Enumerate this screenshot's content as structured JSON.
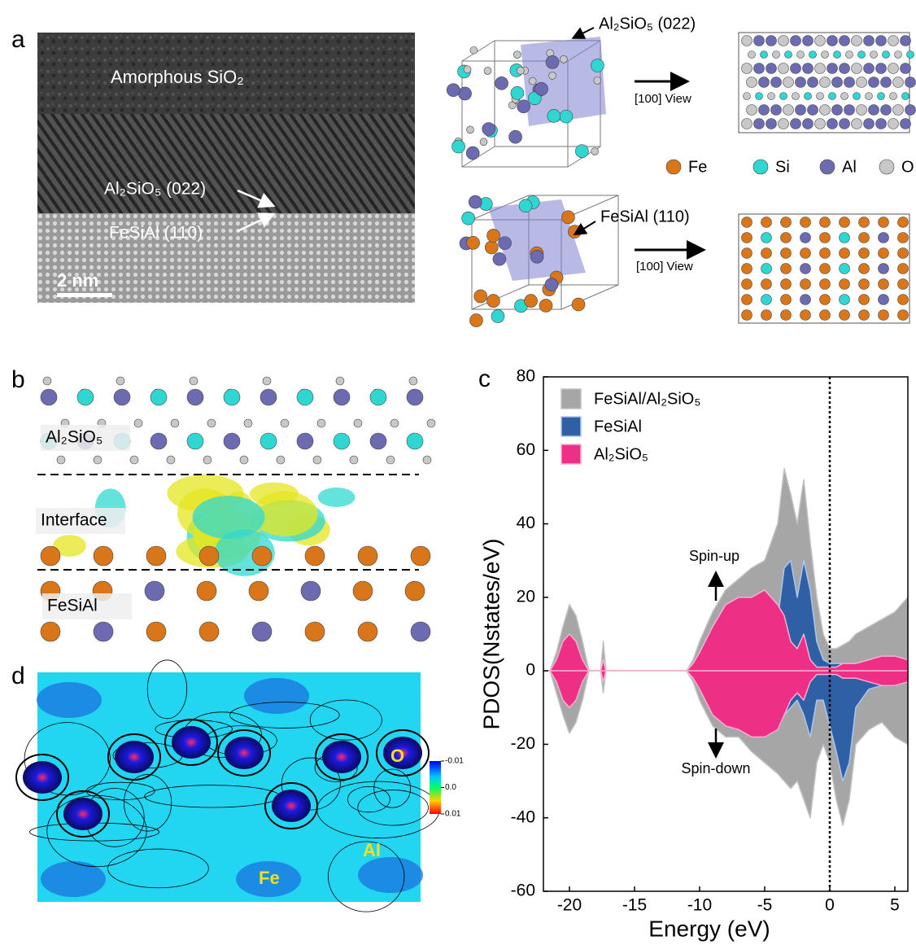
{
  "panel_a": {
    "label": "a",
    "tem": {
      "labels": [
        "Amorphous SiO₂",
        "Al₂SiO₅ (022)",
        "FeSiAl (110)"
      ],
      "scale_bar": "2 nm"
    },
    "structures": [
      {
        "plane": "Al₂SiO₅ (022)",
        "view": "[100] View"
      },
      {
        "plane": "FeSiAl (110)",
        "view": "[100] View"
      }
    ],
    "elements": [
      "Fe",
      "Si",
      "Al",
      "O"
    ]
  },
  "panel_b": {
    "label": "b",
    "layers": [
      "Al₂SiO₅",
      "Interface",
      "FeSiAl"
    ]
  },
  "panel_c": {
    "label": "c"
  },
  "panel_d": {
    "label": "d",
    "atoms": [
      "O",
      "Al",
      "Fe"
    ],
    "colorbar": {
      "lim": [
        -0.01,
        0.01
      ],
      "ticks": [
        -0.01,
        {
          "value": 0,
          "label": "0.0"
        },
        0.01
      ]
    }
  },
  "chart_data": {
    "type": "area",
    "x_label": "Energy (eV)",
    "y_label": "PDOS(Nstates/eV)",
    "xlim": [
      -22,
      6
    ],
    "ylim": [
      -60,
      80
    ],
    "xticks": [
      -20,
      -15,
      -10,
      -5,
      0,
      5
    ],
    "yticks": [
      -60,
      -40,
      -20,
      0,
      20,
      40,
      60,
      80
    ],
    "vline": 0,
    "annotations": [
      "Spin-up",
      "Spin-down"
    ],
    "x": [
      -22,
      -21.5,
      -21,
      -20.5,
      -20,
      -19.5,
      -19,
      -18.5,
      -18,
      -17.6,
      -17.4,
      -17.2,
      -17,
      -15,
      -12,
      -11,
      -10.5,
      -10,
      -9,
      -8,
      -7,
      -6,
      -5,
      -4,
      -3.5,
      -3,
      -2.5,
      -2,
      -1.5,
      -1,
      -0.5,
      0,
      0.5,
      1,
      1.5,
      2,
      3,
      4,
      5,
      6
    ],
    "series": [
      {
        "name": "FeSiAl/Al₂SiO₅",
        "color": "#a6a6a6",
        "values": [
          0,
          0,
          5,
          12,
          18,
          15,
          8,
          0,
          0,
          0,
          8,
          0,
          0,
          0,
          0,
          0,
          3,
          8,
          16,
          22,
          25,
          28,
          30,
          40,
          55,
          48,
          40,
          52,
          35,
          20,
          10,
          6,
          6,
          7,
          8,
          10,
          12,
          14,
          16,
          20
        ],
        "down_values": [
          0,
          0,
          -6,
          -12,
          -17,
          -14,
          -8,
          0,
          0,
          0,
          -6,
          0,
          0,
          0,
          0,
          0,
          -3,
          -8,
          -15,
          -18,
          -18,
          -22,
          -25,
          -28,
          -30,
          -32,
          -30,
          -35,
          -40,
          -25,
          -20,
          -25,
          -35,
          -42,
          -35,
          -20,
          -16,
          -14,
          -18,
          -20
        ]
      },
      {
        "name": "FeSiAl",
        "color": "#2f5fa5",
        "values": [
          0,
          0,
          0,
          0,
          0,
          0,
          0,
          0,
          0,
          0,
          0,
          0,
          0,
          0,
          0,
          0,
          1,
          4,
          8,
          12,
          12,
          12,
          14,
          14,
          28,
          30,
          20,
          30,
          22,
          8,
          3,
          2,
          2,
          2,
          2,
          2,
          3,
          3,
          3,
          3
        ],
        "down_values": [
          0,
          0,
          0,
          0,
          0,
          0,
          0,
          0,
          0,
          0,
          0,
          0,
          0,
          0,
          0,
          0,
          -1,
          -3,
          -7,
          -9,
          -10,
          -12,
          -14,
          -15,
          -12,
          -10,
          -8,
          -12,
          -18,
          -8,
          -8,
          -15,
          -22,
          -30,
          -25,
          -10,
          -5,
          -4,
          -3,
          -3
        ]
      },
      {
        "name": "Al₂SiO₅",
        "color": "#ee2f86",
        "values": [
          0,
          0,
          3,
          8,
          10,
          8,
          3,
          0,
          0,
          0,
          3,
          0,
          0,
          0,
          0,
          0,
          2,
          5,
          12,
          18,
          20,
          20,
          22,
          18,
          15,
          8,
          6,
          10,
          3,
          1,
          1,
          1,
          1,
          2,
          2,
          2,
          3,
          4,
          4,
          3
        ],
        "down_values": [
          0,
          0,
          -3,
          -8,
          -10,
          -8,
          -3,
          0,
          0,
          0,
          -3,
          0,
          0,
          0,
          0,
          0,
          -2,
          -5,
          -12,
          -15,
          -16,
          -18,
          -18,
          -16,
          -12,
          -8,
          -6,
          -8,
          -3,
          -1,
          -1,
          -1,
          -1,
          -2,
          -2,
          -2,
          -3,
          -4,
          -4,
          -3
        ]
      }
    ]
  }
}
